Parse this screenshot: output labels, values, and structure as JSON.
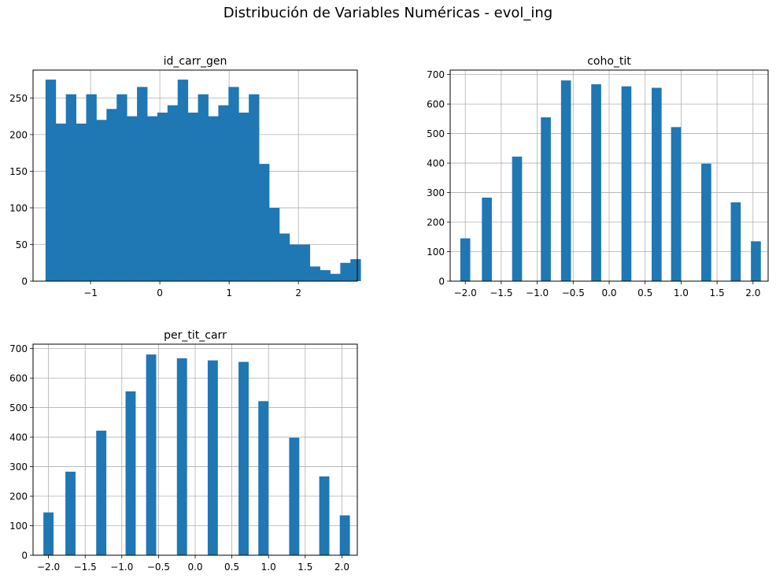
{
  "figure": {
    "suptitle": "Distribución de Variables Numéricas - evol_ing"
  },
  "chart_data": [
    {
      "type": "histogram",
      "title": "id_carr_gen",
      "xlabel": "",
      "ylabel": "",
      "xlim": [
        -1.83,
        2.85
      ],
      "ylim": [
        0,
        288
      ],
      "xticks": [
        -1,
        0,
        1,
        2
      ],
      "xtick_labels": [
        "−1",
        "0",
        "1",
        "2"
      ],
      "yticks": [
        0,
        50,
        100,
        150,
        200,
        250
      ],
      "grid": true,
      "color": "#1f77b4",
      "bin_start": -1.65,
      "bin_width": 0.1467,
      "values": [
        275,
        215,
        255,
        215,
        255,
        220,
        235,
        255,
        225,
        265,
        225,
        230,
        240,
        275,
        230,
        255,
        225,
        240,
        265,
        230,
        255,
        160,
        100,
        65,
        50,
        50,
        20,
        15,
        10,
        25,
        30
      ]
    },
    {
      "type": "histogram",
      "title": "coho_tit",
      "xlabel": "",
      "ylabel": "",
      "xlim": [
        -2.21,
        2.21
      ],
      "ylim": [
        0,
        715
      ],
      "xticks": [
        -2.0,
        -1.5,
        -1.0,
        -0.5,
        0.0,
        0.5,
        1.0,
        1.5,
        2.0
      ],
      "xtick_labels": [
        "−2.0",
        "−1.5",
        "−1.0",
        "−0.5",
        "0.0",
        "0.5",
        "1.0",
        "1.5",
        "2.0"
      ],
      "yticks": [
        0,
        100,
        200,
        300,
        400,
        500,
        600,
        700
      ],
      "grid": true,
      "color": "#1f77b4",
      "bin_width": 0.1382,
      "bars": [
        {
          "x": -2.0,
          "value": 145
        },
        {
          "x": -1.7,
          "value": 283
        },
        {
          "x": -1.28,
          "value": 422
        },
        {
          "x": -0.88,
          "value": 555
        },
        {
          "x": -0.6,
          "value": 680
        },
        {
          "x": -0.18,
          "value": 667
        },
        {
          "x": 0.24,
          "value": 660
        },
        {
          "x": 0.66,
          "value": 655
        },
        {
          "x": 0.93,
          "value": 522
        },
        {
          "x": 1.35,
          "value": 398
        },
        {
          "x": 1.76,
          "value": 267
        },
        {
          "x": 2.04,
          "value": 135
        }
      ]
    },
    {
      "type": "histogram",
      "title": "per_tit_carr",
      "xlabel": "",
      "ylabel": "",
      "xlim": [
        -2.21,
        2.21
      ],
      "ylim": [
        0,
        715
      ],
      "xticks": [
        -2.0,
        -1.5,
        -1.0,
        -0.5,
        0.0,
        0.5,
        1.0,
        1.5,
        2.0
      ],
      "xtick_labels": [
        "−2.0",
        "−1.5",
        "−1.0",
        "−0.5",
        "0.0",
        "0.5",
        "1.0",
        "1.5",
        "2.0"
      ],
      "yticks": [
        0,
        100,
        200,
        300,
        400,
        500,
        600,
        700
      ],
      "grid": true,
      "color": "#1f77b4",
      "bin_width": 0.1382,
      "bars": [
        {
          "x": -2.0,
          "value": 145
        },
        {
          "x": -1.7,
          "value": 283
        },
        {
          "x": -1.28,
          "value": 422
        },
        {
          "x": -0.88,
          "value": 555
        },
        {
          "x": -0.6,
          "value": 680
        },
        {
          "x": -0.18,
          "value": 667
        },
        {
          "x": 0.24,
          "value": 660
        },
        {
          "x": 0.66,
          "value": 655
        },
        {
          "x": 0.93,
          "value": 522
        },
        {
          "x": 1.35,
          "value": 398
        },
        {
          "x": 1.76,
          "value": 267
        },
        {
          "x": 2.04,
          "value": 135
        }
      ]
    }
  ]
}
